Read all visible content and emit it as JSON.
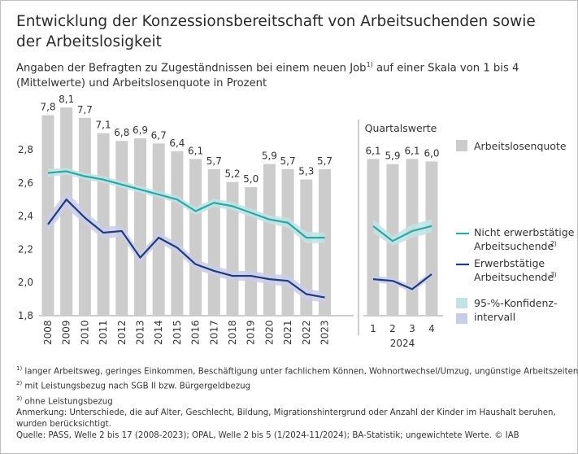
{
  "title": "Entwicklung der Konzessionsbereitschaft von Arbeitsuchenden sowie der Arbeitslosigkeit",
  "subtitle": {
    "part1": "Angaben der Befragten zu Zugeständnissen bei einem neuen Job",
    "sup": "1)",
    "part2": " auf einer Skala von 1 bis 4 (Mittelwerte) und Arbeitslosenquote in Prozent"
  },
  "chart_data": {
    "type": "bar+line",
    "y_ticks": [
      "1,8",
      "2,0",
      "2,2",
      "2,4",
      "2,6",
      "2,8"
    ],
    "ylim": [
      1.8,
      3.0
    ],
    "quarter_section_title": "Quartalswerte",
    "quarter_year_label": "2024",
    "annual": {
      "categories": [
        "2008",
        "2009",
        "2010",
        "2011",
        "2012",
        "2013",
        "2014",
        "2015",
        "2016",
        "2017",
        "2018",
        "2019",
        "2020",
        "2021",
        "2022",
        "2023"
      ],
      "unemployment_rate": [
        7.8,
        8.1,
        7.7,
        7.1,
        6.8,
        6.9,
        6.7,
        6.4,
        6.1,
        5.7,
        5.2,
        5.0,
        5.9,
        5.7,
        5.3,
        5.7
      ],
      "unemployment_labels": [
        "7,8",
        "8,1",
        "7,7",
        "7,1",
        "6,8",
        "6,9",
        "6,7",
        "6,4",
        "6,1",
        "5,7",
        "5,2",
        "5,0",
        "5,9",
        "5,7",
        "5,3",
        "5,7"
      ],
      "not_employed": [
        2.66,
        2.67,
        2.64,
        2.62,
        2.59,
        2.56,
        2.53,
        2.5,
        2.43,
        2.48,
        2.46,
        2.42,
        2.38,
        2.36,
        2.27,
        2.27
      ],
      "not_employed_ci": [
        0.025,
        0.02,
        0.02,
        0.02,
        0.02,
        0.02,
        0.02,
        0.02,
        0.025,
        0.025,
        0.025,
        0.025,
        0.025,
        0.03,
        0.035,
        0.03
      ],
      "employed": [
        2.35,
        2.5,
        2.39,
        2.3,
        2.31,
        2.15,
        2.27,
        2.21,
        2.11,
        2.07,
        2.04,
        2.04,
        2.02,
        2.01,
        1.93,
        1.91
      ],
      "employed_ci": [
        0.05,
        0.05,
        0.04,
        0.035,
        0.035,
        0.03,
        0.03,
        0.03,
        0.03,
        0.03,
        0.03,
        0.03,
        0.03,
        0.035,
        0.035,
        0.03
      ]
    },
    "quarterly": {
      "categories": [
        "1",
        "2",
        "3",
        "4"
      ],
      "unemployment_rate": [
        6.1,
        5.9,
        6.1,
        6.0
      ],
      "unemployment_labels": [
        "6,1",
        "5,9",
        "6,1",
        "6,0"
      ],
      "not_employed": [
        2.34,
        2.25,
        2.31,
        2.34
      ],
      "not_employed_ci": [
        0.04,
        0.03,
        0.04,
        0.04
      ],
      "employed": [
        2.02,
        2.01,
        1.96,
        2.05
      ],
      "employed_ci": [
        0.02,
        0.02,
        0.02,
        0.02
      ]
    },
    "legend": {
      "bars": "Arbeitslosenquote",
      "not_employed_line1": "Nicht erwerbstätige",
      "not_employed_line2": "Arbeitsuchende",
      "not_employed_sup": "2)",
      "employed_line1": "Erwerbstätige",
      "employed_line2": "Arbeitsuchende",
      "employed_sup": "3)",
      "ci_line1": "95-%-Konfidenz-",
      "ci_line2": "intervall"
    },
    "colors": {
      "bars": "#cccccc",
      "not_employed": "#2aa8a8",
      "not_employed_band": "#bfe3e2",
      "employed": "#1f3d7a",
      "employed_band": "#c9cde6"
    }
  },
  "footnotes": {
    "f1_sup": "1)",
    "f1": " langer Arbeitsweg, geringes Einkommen, Beschäftigung unter fachlichem Können, Wohnortwechsel/Umzug, ungünstige Arbeitszeiten",
    "f2_sup": "2)",
    "f2": " mit Leistungsbezug nach SGB II bzw. Bürgergeldbezug",
    "f3_sup": "3)",
    "f3": " ohne Leistungsbezug",
    "note_line1": "Anmerkung: Unterschiede, die auf Alter, Geschlecht, Bildung, Migrationshintergrund oder Anzahl der Kinder im Haushalt beruhen,",
    "note_line2": "wurden berücksichtigt.",
    "source": "Quelle: PASS, Welle 2 bis 17 (2008-2023); OPAL, Welle 2 bis 5 (1/2024-11/2024); BA-Statistik; ungewichtete Werte. © IAB"
  }
}
